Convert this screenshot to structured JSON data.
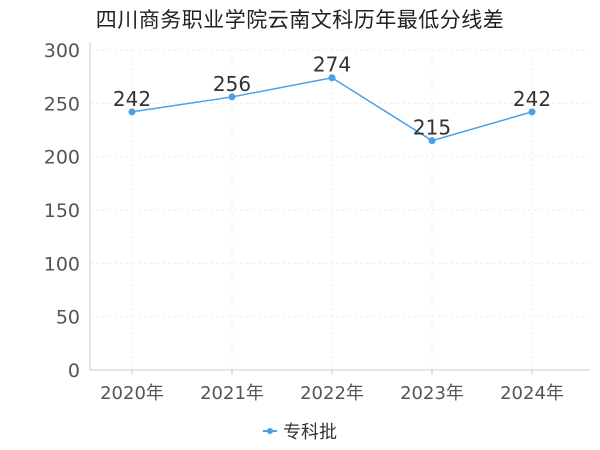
{
  "chart_data": {
    "type": "line",
    "title": "四川商务职业学院云南文科历年最低分线差",
    "categories": [
      "2020年",
      "2021年",
      "2022年",
      "2023年",
      "2024年"
    ],
    "series": [
      {
        "name": "专科批",
        "values": [
          242,
          256,
          274,
          215,
          242
        ],
        "color": "#4a9fe8"
      }
    ],
    "ylim": [
      0,
      300
    ],
    "yticks": [
      0,
      50,
      100,
      150,
      200,
      250,
      300
    ],
    "grid": true,
    "data_labels": true,
    "legend_position": "bottom-center",
    "xlabel": "",
    "ylabel": ""
  }
}
